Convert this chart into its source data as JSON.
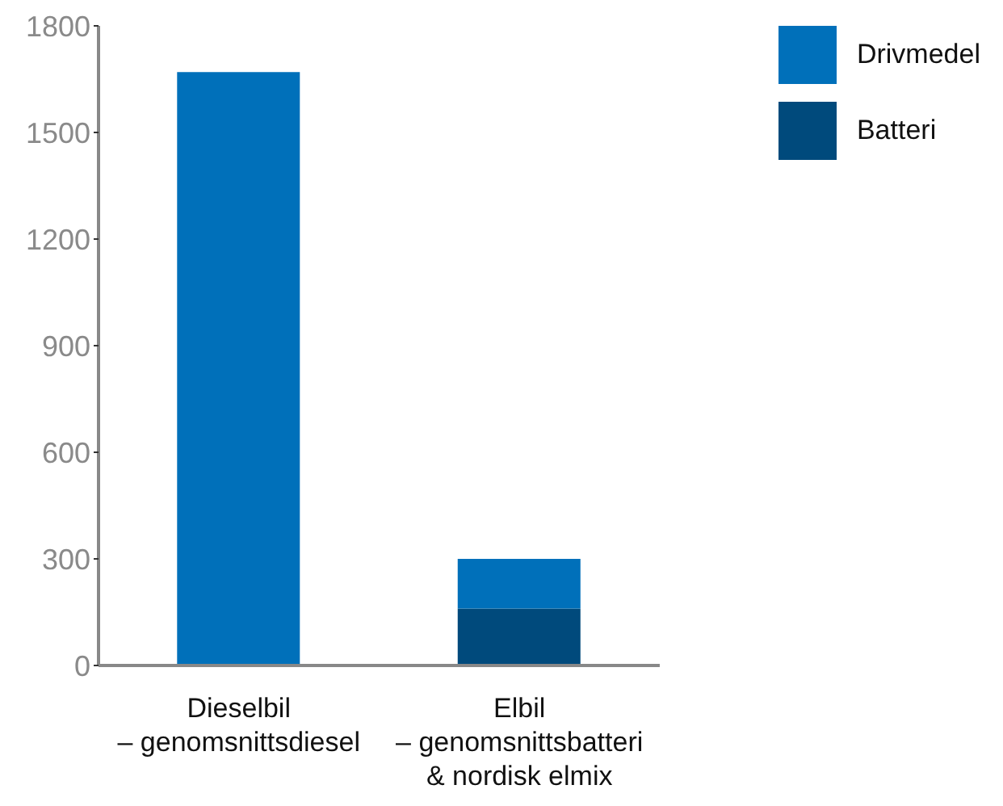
{
  "chart_data": {
    "type": "bar",
    "stacked": true,
    "categories": [
      "Dieselbil\n– genomsnittsdiesel",
      "Elbil\n– genomsnittsbatteri\n& nordisk elmix"
    ],
    "series": [
      {
        "name": "Batteri",
        "color": "#004a7c",
        "values": [
          0,
          160
        ]
      },
      {
        "name": "Drivmedel",
        "color": "#0070ba",
        "values": [
          1670,
          140
        ]
      }
    ],
    "ylim": [
      0,
      1800
    ],
    "yticks": [
      0,
      300,
      600,
      900,
      1200,
      1500,
      1800
    ],
    "grid": false,
    "legend": "top right"
  }
}
